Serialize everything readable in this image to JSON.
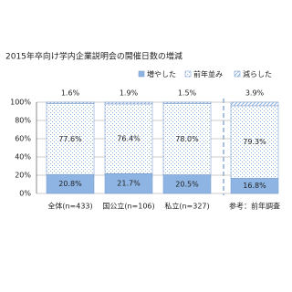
{
  "chart_data": {
    "type": "bar",
    "stacked": true,
    "title": "2015年卒向け学内企業説明会の開催日数の増減",
    "categories": [
      "全体(n=433)",
      "国公立(n=106)",
      "私立(n=327)",
      "参考：前年調査"
    ],
    "series": [
      {
        "name": "増やした",
        "color": "#8db4e2",
        "fill": "solid",
        "values": [
          20.8,
          21.7,
          20.5,
          16.8
        ],
        "value_labels": [
          "20.8%",
          "21.7%",
          "20.5%",
          "16.8%"
        ]
      },
      {
        "name": "前年並み",
        "color": "#8db4e2",
        "fill": "dots",
        "values": [
          77.6,
          76.4,
          78.0,
          79.3
        ],
        "value_labels": [
          "77.6%",
          "76.4%",
          "78.0%",
          "79.3%"
        ]
      },
      {
        "name": "減らした",
        "color": "#8db4e2",
        "fill": "hatch",
        "values": [
          1.6,
          1.9,
          1.5,
          3.9
        ],
        "value_labels": [
          "1.6%",
          "1.9%",
          "1.5%",
          "3.9%"
        ]
      }
    ],
    "ylim": [
      0,
      100
    ],
    "yticks": [
      {
        "value": 0,
        "label": "0%"
      },
      {
        "value": 20,
        "label": "20%"
      },
      {
        "value": 40,
        "label": "40%"
      },
      {
        "value": 60,
        "label": "60%"
      },
      {
        "value": 80,
        "label": "80%"
      },
      {
        "value": 100,
        "label": "100%"
      }
    ],
    "grid": true,
    "legend": "top-right"
  }
}
